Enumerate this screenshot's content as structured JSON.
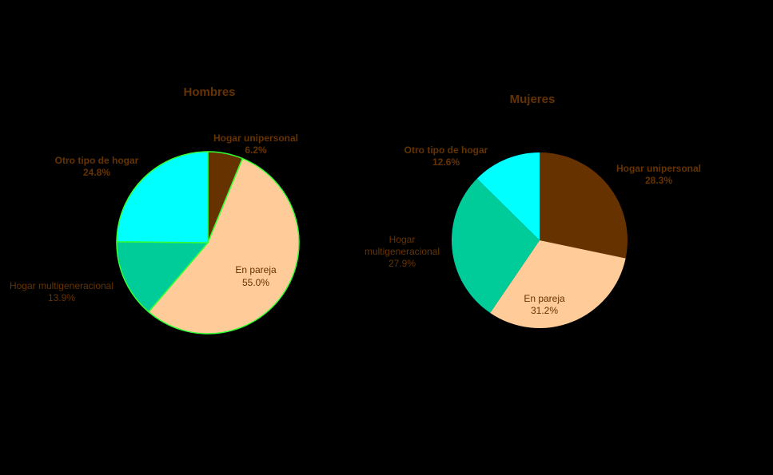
{
  "colors": {
    "background": "#000000",
    "title_text": "#663300",
    "label_text": "#663300",
    "hombres_slice_border": "#33ff33"
  },
  "chart_data": [
    {
      "type": "pie",
      "title": "Hombres",
      "start": "12 o'clock",
      "direction": "clockwise",
      "slices": [
        {
          "label": "Hogar unipersonal",
          "value": 6.2,
          "value_label": "6.2%",
          "color": "#663300"
        },
        {
          "label": "En pareja",
          "value": 55.0,
          "value_label": "55.0%",
          "color": "#ffcc99"
        },
        {
          "label": "Hogar multigeneracional",
          "value": 13.9,
          "value_label": "13.9%",
          "color": "#00cc99"
        },
        {
          "label": "Otro tipo de hogar",
          "value": 24.8,
          "value_label": "24.8%",
          "color": "#00ffff"
        }
      ]
    },
    {
      "type": "pie",
      "title": "Mujeres",
      "start": "12 o'clock",
      "direction": "clockwise",
      "slices": [
        {
          "label": "Hogar unipersonal",
          "value": 28.3,
          "value_label": "28.3%",
          "color": "#663300"
        },
        {
          "label": "En pareja",
          "value": 31.2,
          "value_label": "31.2%",
          "color": "#ffcc99"
        },
        {
          "label": "Hogar multigeneracional",
          "value": 27.9,
          "value_label": "27.9%",
          "color": "#00cc99"
        },
        {
          "label": "Otro tipo de hogar",
          "value": 12.6,
          "value_label": "12.6%",
          "color": "#00ffff"
        }
      ]
    }
  ]
}
